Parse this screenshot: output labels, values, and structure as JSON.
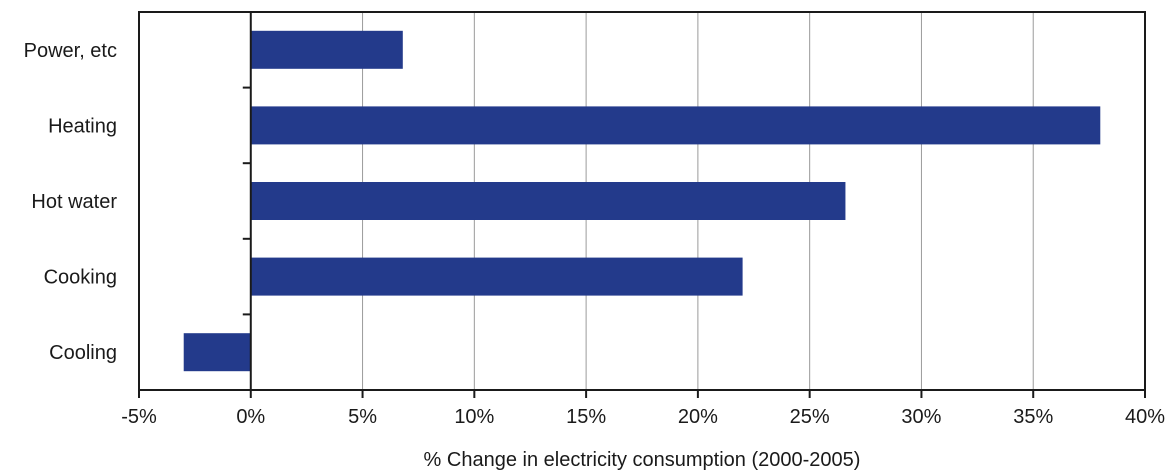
{
  "chart_data": {
    "type": "bar",
    "orientation": "horizontal",
    "categories": [
      "Power, etc",
      "Heating",
      "Hot water",
      "Cooking",
      "Cooling"
    ],
    "values": [
      6.8,
      38.0,
      26.6,
      22.0,
      -3.0
    ],
    "value_unit": "%",
    "xlabel": "% Change in electricity consumption (2000-2005)",
    "ylabel": "",
    "xlim": [
      -5,
      40
    ],
    "xticks": [
      -5,
      0,
      5,
      10,
      15,
      20,
      25,
      30,
      35,
      40
    ],
    "xtick_labels": [
      "-5%",
      "0%",
      "5%",
      "10%",
      "15%",
      "20%",
      "25%",
      "30%",
      "35%",
      "40%"
    ],
    "grid": "vertical",
    "legend": "none",
    "colors": {
      "bar": "#233a8b",
      "grid": "#9a9a9a",
      "axis": "#1a1a1a"
    }
  }
}
